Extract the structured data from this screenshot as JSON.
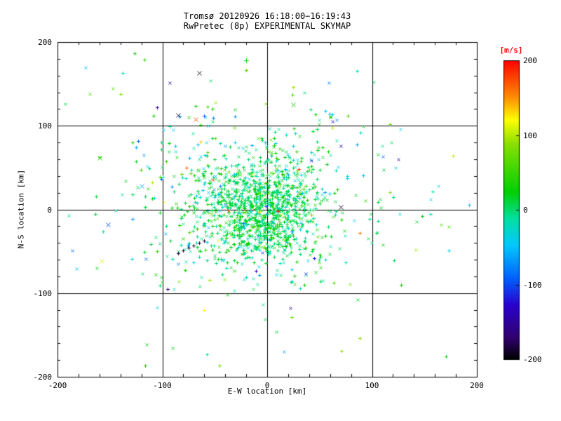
{
  "window": {
    "background": "#ffffff",
    "foreground": "#000000"
  },
  "chart_data": {
    "type": "scatter",
    "title": "Tromsø 20120926 16:18:00−16:19:43",
    "subtitle": "RwPretec (8p) EXPERIMENTAL SKYMAP",
    "xlabel": "E-W location [km]",
    "ylabel": "N-S location [km]",
    "xlim": [
      -200,
      200
    ],
    "ylim": [
      -200,
      200
    ],
    "xticks": [
      -200,
      -100,
      0,
      100,
      200
    ],
    "yticks": [
      -200,
      -100,
      0,
      100,
      200
    ],
    "minor_tick_step": 20,
    "grid": true,
    "grid_lines_x": [
      -100,
      0,
      100
    ],
    "grid_lines_y": [
      -100,
      0,
      100
    ],
    "frame_color": "#000000",
    "colorbar": {
      "label": "[m/s]",
      "label_color": "#ff0000",
      "ticks": [
        200,
        100,
        0,
        -100,
        -200
      ],
      "vmin": -200,
      "vmax": 200,
      "stops": [
        {
          "t": 0.0,
          "color": "#000000"
        },
        {
          "t": 0.07,
          "color": "#30006a"
        },
        {
          "t": 0.18,
          "color": "#2a00d0"
        },
        {
          "t": 0.27,
          "color": "#0060ff"
        },
        {
          "t": 0.38,
          "color": "#00c8ff"
        },
        {
          "t": 0.47,
          "color": "#00e0a0"
        },
        {
          "t": 0.56,
          "color": "#00d000"
        },
        {
          "t": 0.72,
          "color": "#8ae000"
        },
        {
          "t": 0.8,
          "color": "#ffff00"
        },
        {
          "t": 0.88,
          "color": "#ff8800"
        },
        {
          "t": 1.0,
          "color": "#ff0000"
        }
      ]
    },
    "point_cloud": {
      "seed": 20120926,
      "marker_size": 5,
      "marker_types": [
        "+",
        "x"
      ],
      "clusters": [
        {
          "n": 850,
          "cx": -5,
          "cy": 0,
          "sx": 26,
          "sy": 30,
          "v_mean": 8,
          "v_sigma": 22
        },
        {
          "n": 420,
          "cx": -12,
          "cy": 12,
          "sx": 55,
          "sy": 48,
          "v_mean": 2,
          "v_sigma": 30
        },
        {
          "n": 200,
          "cx": -5,
          "cy": 15,
          "sx": 85,
          "sy": 75,
          "v_mean": 0,
          "v_sigma": 55
        },
        {
          "n": 45,
          "cx": 0,
          "cy": -10,
          "sx": 125,
          "sy": 105,
          "v_mean": -10,
          "v_sigma": 85
        }
      ]
    },
    "notable_points": [
      {
        "x": -65,
        "y": 163,
        "v": -195,
        "marker": "x",
        "size": 7
      },
      {
        "x": -20,
        "y": 178,
        "v": 30,
        "marker": "+",
        "size": 6
      },
      {
        "x": -85,
        "y": 113,
        "v": -190,
        "marker": "x",
        "size": 7
      },
      {
        "x": -68,
        "y": 108,
        "v": 170,
        "marker": "x",
        "size": 6
      },
      {
        "x": -57,
        "y": 123,
        "v": 60,
        "marker": "+",
        "size": 5
      },
      {
        "x": -105,
        "y": 122,
        "v": -150,
        "marker": "+",
        "size": 5
      },
      {
        "x": 25,
        "y": 125,
        "v": 30,
        "marker": "x",
        "size": 6
      },
      {
        "x": 62,
        "y": 98,
        "v": 100,
        "marker": "+",
        "size": 5
      },
      {
        "x": -160,
        "y": 62,
        "v": 40,
        "marker": "x",
        "size": 6
      },
      {
        "x": -120,
        "y": 28,
        "v": -60,
        "marker": "x",
        "size": 6
      },
      {
        "x": -152,
        "y": -18,
        "v": -100,
        "marker": "x",
        "size": 6
      },
      {
        "x": -158,
        "y": -62,
        "v": 110,
        "marker": "x",
        "size": 6
      },
      {
        "x": -85,
        "y": -52,
        "v": -185,
        "marker": "+",
        "size": 4
      },
      {
        "x": -80,
        "y": -49,
        "v": -190,
        "marker": "+",
        "size": 4
      },
      {
        "x": -75,
        "y": -46,
        "v": -195,
        "marker": "+",
        "size": 4
      },
      {
        "x": -70,
        "y": -43,
        "v": -190,
        "marker": "+",
        "size": 4
      },
      {
        "x": -65,
        "y": -40,
        "v": -185,
        "marker": "+",
        "size": 4
      },
      {
        "x": -60,
        "y": -37,
        "v": -190,
        "marker": "+",
        "size": 4
      },
      {
        "x": 70,
        "y": 3,
        "v": -190,
        "marker": "x",
        "size": 6
      },
      {
        "x": 10,
        "y": -2,
        "v": 195,
        "marker": "+",
        "size": 5
      },
      {
        "x": -37,
        "y": -1,
        "v": 190,
        "marker": "x",
        "size": 5
      },
      {
        "x": 30,
        "y": 48,
        "v": 180,
        "marker": "+",
        "size": 5
      },
      {
        "x": 88,
        "y": -28,
        "v": 160,
        "marker": "+",
        "size": 5
      },
      {
        "x": 148,
        "y": -8,
        "v": 20,
        "marker": "+",
        "size": 5
      },
      {
        "x": -95,
        "y": -95,
        "v": -170,
        "marker": "+",
        "size": 4
      },
      {
        "x": -60,
        "y": -120,
        "v": 120,
        "marker": "+",
        "size": 5
      }
    ]
  }
}
